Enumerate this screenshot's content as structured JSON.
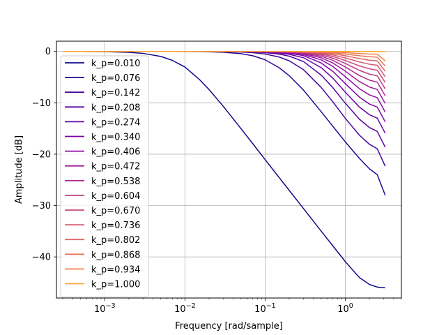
{
  "chart_data": {
    "type": "line",
    "title": "",
    "xlabel": "Frequency [rad/sample]",
    "ylabel": "Amplitude [dB]",
    "xscale": "log",
    "xlim": [
      0.00025,
      5.0
    ],
    "ylim": [
      -48,
      2
    ],
    "grid": true,
    "legend_position": "upper-left",
    "x_ticks": [
      {
        "value": 0.001,
        "base": "10",
        "exp": "−3"
      },
      {
        "value": 0.01,
        "base": "10",
        "exp": "−2"
      },
      {
        "value": 0.1,
        "base": "10",
        "exp": "−1"
      },
      {
        "value": 1.0,
        "base": "10",
        "exp": "0"
      }
    ],
    "y_ticks": [
      {
        "value": 0,
        "label": "0"
      },
      {
        "value": -10,
        "label": "−10"
      },
      {
        "value": -20,
        "label": "−20"
      },
      {
        "value": -30,
        "label": "−30"
      },
      {
        "value": -40,
        "label": "−40"
      }
    ],
    "x": [
      0.0003,
      0.0005,
      0.001,
      0.002,
      0.003,
      0.005,
      0.007,
      0.01,
      0.015,
      0.02,
      0.03,
      0.05,
      0.07,
      0.1,
      0.15,
      0.2,
      0.3,
      0.5,
      0.7,
      1.0,
      1.5,
      2.0,
      2.5,
      3.1416
    ],
    "series": [
      {
        "name": "k_p=0.010",
        "color": "#0d0887",
        "values": [
          0.0,
          -0.01,
          -0.04,
          -0.17,
          -0.37,
          -0.97,
          -1.75,
          -3.04,
          -5.39,
          -7.42,
          -10.66,
          -15.03,
          -17.94,
          -21.06,
          -24.57,
          -27.06,
          -30.57,
          -34.98,
          -37.86,
          -40.92,
          -44.03,
          -45.37,
          -45.87,
          -46.02
        ]
      },
      {
        "name": "k_p=0.076",
        "color": "#2a0593",
        "values": [
          0.0,
          0.0,
          0.0,
          0.0,
          0.0,
          0.0,
          -0.01,
          -0.02,
          -0.04,
          -0.07,
          -0.16,
          -0.43,
          -0.84,
          -1.62,
          -3.18,
          -4.73,
          -7.5,
          -11.73,
          -14.59,
          -17.61,
          -20.83,
          -22.87,
          -23.99,
          -27.99
        ]
      },
      {
        "name": "k_p=0.142",
        "color": "#41049d",
        "values": [
          0.0,
          0.0,
          0.0,
          0.0,
          0.0,
          0.0,
          0.0,
          -0.01,
          -0.01,
          -0.02,
          -0.05,
          -0.13,
          -0.25,
          -0.5,
          -1.09,
          -1.82,
          -3.53,
          -7.01,
          -9.83,
          -13.02,
          -16.31,
          -18.08,
          -18.94,
          -22.35
        ]
      },
      {
        "name": "k_p=0.208",
        "color": "#5601a4",
        "values": [
          0.0,
          0.0,
          0.0,
          0.0,
          0.0,
          0.0,
          0.0,
          0.0,
          -0.01,
          -0.01,
          -0.02,
          -0.06,
          -0.12,
          -0.24,
          -0.53,
          -0.92,
          -1.95,
          -4.61,
          -7.07,
          -10.08,
          -13.2,
          -14.82,
          -15.57,
          -18.64
        ]
      },
      {
        "name": "k_p=0.274",
        "color": "#6a00a8",
        "values": [
          0.0,
          0.0,
          0.0,
          0.0,
          0.0,
          0.0,
          0.0,
          0.0,
          0.0,
          -0.01,
          -0.01,
          -0.04,
          -0.07,
          -0.14,
          -0.32,
          -0.56,
          -1.21,
          -3.16,
          -5.21,
          -7.93,
          -10.84,
          -12.32,
          -12.98,
          -15.93
        ]
      },
      {
        "name": "k_p=0.340",
        "color": "#7e03a8",
        "values": [
          0.0,
          0.0,
          0.0,
          0.0,
          0.0,
          0.0,
          0.0,
          0.0,
          0.0,
          0.0,
          -0.01,
          -0.02,
          -0.05,
          -0.09,
          -0.21,
          -0.37,
          -0.81,
          -2.24,
          -3.89,
          -6.26,
          -8.9,
          -10.24,
          -10.83,
          -13.71
        ]
      },
      {
        "name": "k_p=0.406",
        "color": "#8f0da4",
        "values": [
          0.0,
          0.0,
          0.0,
          0.0,
          0.0,
          0.0,
          0.0,
          0.0,
          0.0,
          0.0,
          -0.01,
          -0.02,
          -0.03,
          -0.07,
          -0.15,
          -0.26,
          -0.58,
          -1.64,
          -2.93,
          -4.91,
          -7.26,
          -8.47,
          -9.0,
          -11.81
        ]
      },
      {
        "name": "k_p=0.472",
        "color": "#a01a9c",
        "values": [
          0.0,
          0.0,
          0.0,
          0.0,
          0.0,
          0.0,
          0.0,
          0.0,
          0.0,
          0.0,
          0.0,
          -0.01,
          -0.02,
          -0.05,
          -0.11,
          -0.19,
          -0.43,
          -1.23,
          -2.24,
          -3.85,
          -5.87,
          -6.93,
          -7.39,
          -10.12
        ]
      },
      {
        "name": "k_p=0.538",
        "color": "#b12a90",
        "values": [
          0.0,
          0.0,
          0.0,
          0.0,
          0.0,
          0.0,
          0.0,
          0.0,
          0.0,
          0.0,
          0.0,
          -0.01,
          -0.02,
          -0.04,
          -0.08,
          -0.14,
          -0.32,
          -0.93,
          -1.73,
          -3.02,
          -4.7,
          -5.59,
          -5.98,
          -8.63
        ]
      },
      {
        "name": "k_p=0.604",
        "color": "#bf3984",
        "values": [
          0.0,
          0.0,
          0.0,
          0.0,
          0.0,
          0.0,
          0.0,
          0.0,
          0.0,
          0.0,
          0.0,
          -0.01,
          -0.01,
          -0.03,
          -0.06,
          -0.1,
          -0.23,
          -0.69,
          -1.31,
          -2.33,
          -3.69,
          -4.42,
          -4.74,
          -7.28
        ]
      },
      {
        "name": "k_p=0.670",
        "color": "#cb4679",
        "values": [
          0.0,
          0.0,
          0.0,
          0.0,
          0.0,
          0.0,
          0.0,
          0.0,
          0.0,
          0.0,
          0.0,
          -0.01,
          -0.01,
          -0.02,
          -0.04,
          -0.07,
          -0.17,
          -0.5,
          -0.97,
          -1.75,
          -2.81,
          -3.39,
          -3.65,
          -6.04
        ]
      },
      {
        "name": "k_p=0.736",
        "color": "#d6556d",
        "values": [
          0.0,
          0.0,
          0.0,
          0.0,
          0.0,
          0.0,
          0.0,
          0.0,
          0.0,
          0.0,
          0.0,
          0.0,
          -0.01,
          -0.01,
          -0.03,
          -0.05,
          -0.11,
          -0.35,
          -0.69,
          -1.26,
          -2.05,
          -2.49,
          -2.69,
          -4.92
        ]
      },
      {
        "name": "k_p=0.802",
        "color": "#e16462",
        "values": [
          0.0,
          0.0,
          0.0,
          0.0,
          0.0,
          0.0,
          0.0,
          0.0,
          0.0,
          0.0,
          0.0,
          0.0,
          0.0,
          -0.01,
          -0.02,
          -0.03,
          -0.07,
          -0.23,
          -0.45,
          -0.84,
          -1.39,
          -1.7,
          -1.84,
          -3.84
        ]
      },
      {
        "name": "k_p=0.868",
        "color": "#ea7457",
        "values": [
          0.0,
          0.0,
          0.0,
          0.0,
          0.0,
          0.0,
          0.0,
          0.0,
          0.0,
          0.0,
          0.0,
          0.0,
          0.0,
          -0.01,
          -0.01,
          -0.02,
          -0.04,
          -0.13,
          -0.26,
          -0.5,
          -0.84,
          -1.03,
          -1.12,
          -2.82
        ]
      },
      {
        "name": "k_p=0.934",
        "color": "#f2844b",
        "values": [
          0.0,
          0.0,
          0.0,
          0.0,
          0.0,
          0.0,
          0.0,
          0.0,
          0.0,
          0.0,
          0.0,
          0.0,
          0.0,
          0.0,
          0.0,
          -0.01,
          -0.02,
          -0.06,
          -0.12,
          -0.23,
          -0.39,
          -0.49,
          -0.53,
          -1.84
        ]
      },
      {
        "name": "k_p=1.000",
        "color": "#fca636",
        "values": [
          0.0,
          0.0,
          0.0,
          0.0,
          0.0,
          0.0,
          0.0,
          0.0,
          0.0,
          0.0,
          0.0,
          0.0,
          0.0,
          0.0,
          0.0,
          0.0,
          0.0,
          0.0,
          0.0,
          0.0,
          0.0,
          0.0,
          0.0,
          0.0
        ]
      }
    ],
    "legend_colors": [
      "#0d0887",
      "#2a0593",
      "#41049d",
      "#5601a4",
      "#6a00a8",
      "#7e03a8",
      "#8f0da4",
      "#a01a9c",
      "#b12a90",
      "#bf3984",
      "#cb4679",
      "#d6556d",
      "#e16462",
      "#ea7457",
      "#f2844b",
      "#fca636"
    ]
  }
}
